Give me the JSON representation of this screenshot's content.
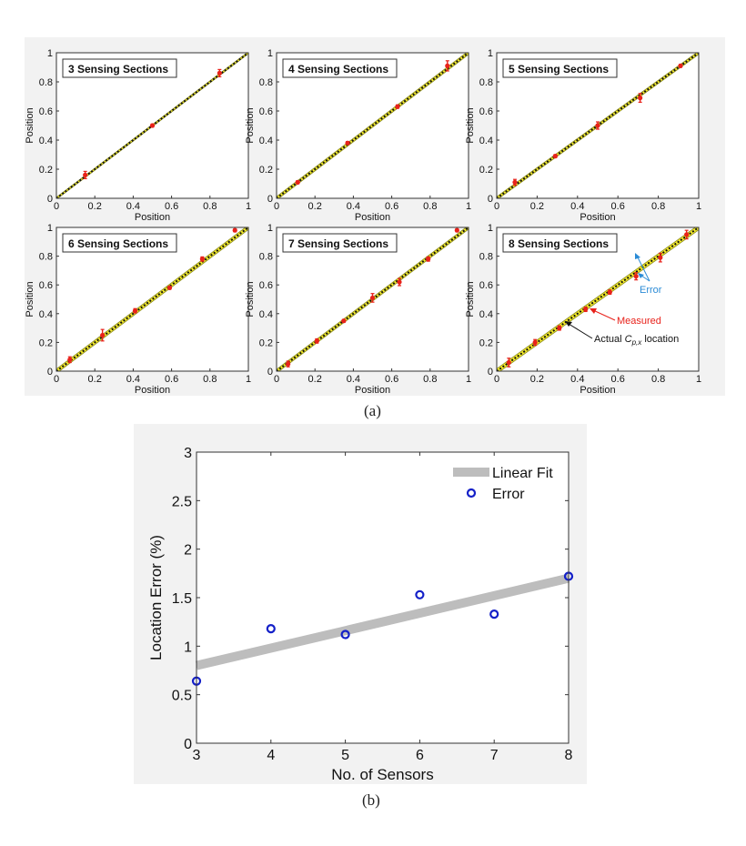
{
  "panel_a_caption": "(a)",
  "panel_b_caption": "(b)",
  "colors": {
    "band_fill": "#f5ec2a",
    "band_edge": "#8b8b1e",
    "measured_marker": "#e8221b",
    "diagonal": "#111111",
    "fit_line": "#bdbdbd",
    "error_marker": "#1420c8",
    "error_annotation": "#2b8bd6",
    "measured_annotation": "#e8221b"
  },
  "chart_data": [
    {
      "type": "scatter",
      "title": "3 Sensing Sections",
      "xlabel": "Position",
      "ylabel": "Position",
      "xlim": [
        0,
        1
      ],
      "ylim": [
        0,
        1
      ],
      "xticks": [
        "0",
        "0.2",
        "0.4",
        "0.6",
        "0.8",
        "1"
      ],
      "yticks": [
        "0",
        "0.2",
        "0.4",
        "0.6",
        "0.8",
        "1"
      ],
      "band_halfwidth": 0.007,
      "points": [
        {
          "x": 0.15,
          "y": 0.16,
          "err": 0.025
        },
        {
          "x": 0.5,
          "y": 0.5,
          "err": 0.01
        },
        {
          "x": 0.85,
          "y": 0.86,
          "err": 0.025
        }
      ]
    },
    {
      "type": "scatter",
      "title": "4 Sensing Sections",
      "xlabel": "Position",
      "ylabel": "Position",
      "xlim": [
        0,
        1
      ],
      "ylim": [
        0,
        1
      ],
      "xticks": [
        "0",
        "0.2",
        "0.4",
        "0.6",
        "0.8",
        "1"
      ],
      "yticks": [
        "0",
        "0.2",
        "0.4",
        "0.6",
        "0.8",
        "1"
      ],
      "band_halfwidth": 0.012,
      "points": [
        {
          "x": 0.11,
          "y": 0.11,
          "err": 0.01
        },
        {
          "x": 0.37,
          "y": 0.38,
          "err": 0.01
        },
        {
          "x": 0.63,
          "y": 0.63,
          "err": 0.012
        },
        {
          "x": 0.89,
          "y": 0.91,
          "err": 0.035
        }
      ]
    },
    {
      "type": "scatter",
      "title": "5 Sensing Sections",
      "xlabel": "Position",
      "ylabel": "Position",
      "xlim": [
        0,
        1
      ],
      "ylim": [
        0,
        1
      ],
      "xticks": [
        "0",
        "0.2",
        "0.4",
        "0.6",
        "0.8",
        "1"
      ],
      "yticks": [
        "0",
        "0.2",
        "0.4",
        "0.6",
        "0.8",
        "1"
      ],
      "band_halfwidth": 0.011,
      "points": [
        {
          "x": 0.09,
          "y": 0.11,
          "err": 0.02
        },
        {
          "x": 0.29,
          "y": 0.29,
          "err": 0.01
        },
        {
          "x": 0.5,
          "y": 0.5,
          "err": 0.025
        },
        {
          "x": 0.71,
          "y": 0.69,
          "err": 0.03
        },
        {
          "x": 0.91,
          "y": 0.91,
          "err": 0.01
        }
      ]
    },
    {
      "type": "scatter",
      "title": "6 Sensing Sections",
      "xlabel": "Position",
      "ylabel": "Position",
      "xlim": [
        0,
        1
      ],
      "ylim": [
        0,
        1
      ],
      "xticks": [
        "0",
        "0.2",
        "0.4",
        "0.6",
        "0.8",
        "1"
      ],
      "yticks": [
        "0",
        "0.2",
        "0.4",
        "0.6",
        "0.8",
        "1"
      ],
      "band_halfwidth": 0.015,
      "points": [
        {
          "x": 0.07,
          "y": 0.08,
          "err": 0.02
        },
        {
          "x": 0.24,
          "y": 0.25,
          "err": 0.04
        },
        {
          "x": 0.41,
          "y": 0.42,
          "err": 0.015
        },
        {
          "x": 0.59,
          "y": 0.58,
          "err": 0.01
        },
        {
          "x": 0.76,
          "y": 0.78,
          "err": 0.015
        },
        {
          "x": 0.93,
          "y": 0.98,
          "err": 0.01
        }
      ]
    },
    {
      "type": "scatter",
      "title": "7 Sensing Sections",
      "xlabel": "Position",
      "ylabel": "Position",
      "xlim": [
        0,
        1
      ],
      "ylim": [
        0,
        1
      ],
      "xticks": [
        "0",
        "0.2",
        "0.4",
        "0.6",
        "0.8",
        "1"
      ],
      "yticks": [
        "0",
        "0.2",
        "0.4",
        "0.6",
        "0.8",
        "1"
      ],
      "band_halfwidth": 0.013,
      "points": [
        {
          "x": 0.06,
          "y": 0.05,
          "err": 0.02
        },
        {
          "x": 0.21,
          "y": 0.21,
          "err": 0.015
        },
        {
          "x": 0.35,
          "y": 0.35,
          "err": 0.01
        },
        {
          "x": 0.5,
          "y": 0.51,
          "err": 0.03
        },
        {
          "x": 0.64,
          "y": 0.62,
          "err": 0.025
        },
        {
          "x": 0.79,
          "y": 0.78,
          "err": 0.015
        },
        {
          "x": 0.94,
          "y": 0.98,
          "err": 0.01
        }
      ]
    },
    {
      "type": "scatter",
      "title": "8 Sensing Sections",
      "xlabel": "Position",
      "ylabel": "Position",
      "xlim": [
        0,
        1
      ],
      "ylim": [
        0,
        1
      ],
      "xticks": [
        "0",
        "0.2",
        "0.4",
        "0.6",
        "0.8",
        "1"
      ],
      "yticks": [
        "0",
        "0.2",
        "0.4",
        "0.6",
        "0.8",
        "1"
      ],
      "band_halfwidth": 0.017,
      "points": [
        {
          "x": 0.06,
          "y": 0.06,
          "err": 0.03
        },
        {
          "x": 0.19,
          "y": 0.2,
          "err": 0.02
        },
        {
          "x": 0.31,
          "y": 0.3,
          "err": 0.015
        },
        {
          "x": 0.44,
          "y": 0.43,
          "err": 0.015
        },
        {
          "x": 0.56,
          "y": 0.55,
          "err": 0.015
        },
        {
          "x": 0.69,
          "y": 0.66,
          "err": 0.025
        },
        {
          "x": 0.81,
          "y": 0.79,
          "err": 0.03
        },
        {
          "x": 0.94,
          "y": 0.95,
          "err": 0.03
        }
      ],
      "annotations": {
        "error": "Error",
        "measured": "Measured",
        "actual_prefix": "Actual ",
        "actual_symbol": "C",
        "actual_subscript": "p,x",
        "actual_suffix": " location"
      }
    },
    {
      "type": "scatter",
      "title": "",
      "xlabel": "No. of Sensors",
      "ylabel": "Location Error (%)",
      "xlim": [
        3,
        8
      ],
      "ylim": [
        0,
        3
      ],
      "xticks": [
        "3",
        "4",
        "5",
        "6",
        "7",
        "8"
      ],
      "yticks": [
        "0",
        "0.5",
        "1",
        "1.5",
        "2",
        "2.5",
        "3"
      ],
      "legend_position": "top-right",
      "series": [
        {
          "name": "Linear Fit",
          "type": "line",
          "x": [
            3,
            8
          ],
          "y": [
            0.8,
            1.7
          ]
        },
        {
          "name": "Error",
          "type": "scatter",
          "x": [
            3,
            4,
            5,
            6,
            7,
            8
          ],
          "y": [
            0.64,
            1.18,
            1.12,
            1.53,
            1.33,
            1.72
          ]
        }
      ]
    }
  ]
}
